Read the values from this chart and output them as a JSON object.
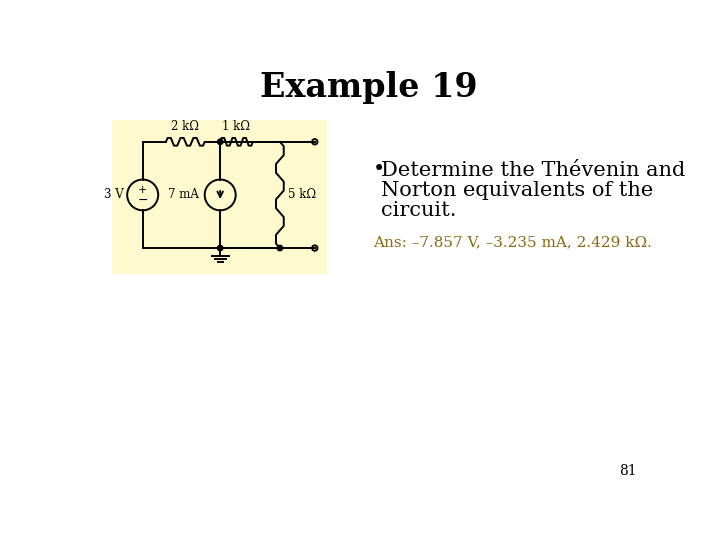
{
  "title": "Example 19",
  "title_fontsize": 24,
  "title_fontweight": "bold",
  "bullet_text_lines": [
    "Determine the Thévenin and",
    "Norton equivalents of the",
    "circuit."
  ],
  "bullet_fontsize": 15,
  "ans_text": "Ans: –7.857 V, –3.235 mA, 2.429 kΩ.",
  "ans_fontsize": 11,
  "page_number": "81",
  "page_number_fontsize": 10,
  "circuit_bg": "#FFFACD",
  "label_2kohm": "2 kΩ",
  "label_1kohm": "1 kΩ",
  "label_5kohm": "5 kΩ",
  "label_3V": "3 V",
  "label_7mA": "7 mA",
  "background_color": "#ffffff",
  "ans_color": "#8B6914"
}
